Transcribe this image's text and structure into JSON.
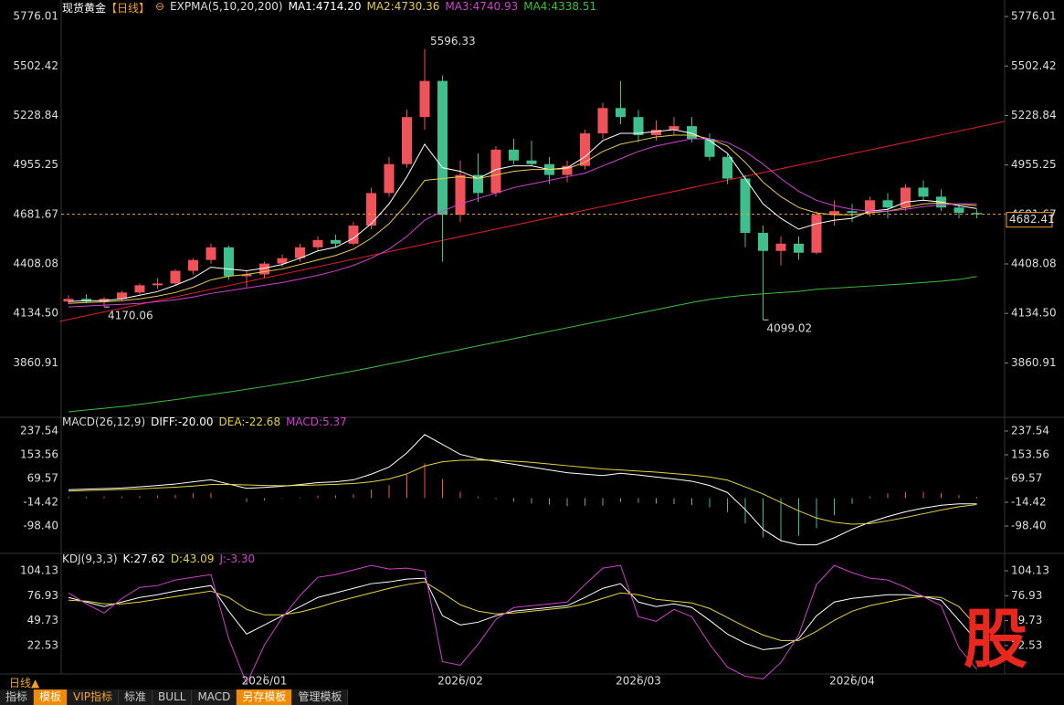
{
  "chart_data": [
    {
      "type": "candlestick",
      "title": "现货黄金",
      "period": "【日线】",
      "indicator": "EXPMA(5,10,20,200)",
      "categories": [
        null,
        null,
        null,
        null,
        null,
        null,
        null,
        null,
        null,
        null,
        null,
        "2026/01",
        null,
        null,
        null,
        null,
        null,
        null,
        null,
        null,
        null,
        null,
        "2026/02",
        null,
        null,
        null,
        null,
        null,
        null,
        null,
        null,
        null,
        "2026/03",
        null,
        null,
        null,
        null,
        null,
        null,
        null,
        null,
        null,
        null,
        null,
        "2026/04",
        null,
        null,
        null,
        null,
        null,
        null,
        null
      ],
      "open": [
        4200,
        4215,
        4200,
        4215,
        4250,
        4290,
        4300,
        4370,
        4430,
        4500,
        4340,
        4350,
        4410,
        4440,
        4500,
        4540,
        4520,
        4620,
        4800,
        4960,
        5220,
        5420,
        4680,
        4900,
        4800,
        5040,
        4980,
        4960,
        4900,
        4950,
        5130,
        5270,
        5220,
        5120,
        5150,
        5170,
        5100,
        5000,
        4880,
        4580,
        4480,
        4520,
        4470,
        4680,
        4700,
        4690,
        4760,
        4720,
        4830,
        4780,
        4720,
        4690
      ],
      "high": [
        4235,
        4240,
        4225,
        4260,
        4300,
        4330,
        4380,
        4440,
        4520,
        4510,
        4370,
        4420,
        4460,
        4520,
        4560,
        4570,
        4640,
        4830,
        5000,
        5260,
        5596.33,
        5450,
        4980,
        5020,
        5060,
        5100,
        5090,
        5000,
        4980,
        5150,
        5300,
        5420,
        5260,
        5200,
        5220,
        5220,
        5130,
        5020,
        4900,
        4620,
        4560,
        4560,
        4700,
        4760,
        4740,
        4780,
        4800,
        4850,
        4870,
        4820,
        4740,
        4710
      ],
      "low": [
        4185,
        4190,
        4170.06,
        4205,
        4240,
        4270,
        4290,
        4350,
        4410,
        4320,
        4280,
        4330,
        4390,
        4420,
        4480,
        4500,
        4510,
        4600,
        4780,
        4940,
        5150,
        4420,
        4640,
        4750,
        4780,
        4960,
        4950,
        4850,
        4860,
        4930,
        5100,
        5180,
        5080,
        5090,
        5120,
        5080,
        4980,
        4850,
        4500,
        4099.02,
        4400,
        4430,
        4460,
        4620,
        4640,
        4670,
        4660,
        4700,
        4760,
        4700,
        4660,
        4660
      ],
      "close": [
        4215,
        4200,
        4215,
        4250,
        4290,
        4300,
        4370,
        4430,
        4500,
        4340,
        4350,
        4410,
        4440,
        4500,
        4540,
        4520,
        4620,
        4800,
        4960,
        5220,
        5420,
        4680,
        4900,
        4800,
        5040,
        4980,
        4960,
        4900,
        4950,
        5130,
        5270,
        5220,
        5120,
        5150,
        5170,
        5100,
        5000,
        4880,
        4580,
        4480,
        4520,
        4470,
        4680,
        4700,
        4690,
        4760,
        4720,
        4830,
        4780,
        4720,
        4690,
        4682.41
      ],
      "up_color": "#f0525a",
      "down_color": "#3fbf8c",
      "series": [
        {
          "name": "MA1:4714.20",
          "color": "#ffffff",
          "values": [
            4200,
            4205,
            4205,
            4215,
            4235,
            4255,
            4290,
            4330,
            4390,
            4380,
            4370,
            4385,
            4405,
            4440,
            4480,
            4500,
            4550,
            4630,
            4740,
            4890,
            5070,
            4940,
            4920,
            4880,
            4930,
            4950,
            4950,
            4930,
            4940,
            5000,
            5090,
            5130,
            5130,
            5140,
            5150,
            5130,
            5090,
            5020,
            4880,
            4740,
            4660,
            4600,
            4630,
            4650,
            4660,
            4700,
            4710,
            4750,
            4760,
            4750,
            4730,
            4714.2
          ]
        },
        {
          "name": "MA2:4730.36",
          "color": "#e6c94a",
          "values": [
            4190,
            4195,
            4198,
            4205,
            4215,
            4230,
            4250,
            4280,
            4320,
            4340,
            4350,
            4365,
            4380,
            4405,
            4430,
            4455,
            4490,
            4550,
            4630,
            4740,
            4870,
            4880,
            4890,
            4880,
            4900,
            4920,
            4930,
            4930,
            4935,
            4970,
            5030,
            5070,
            5090,
            5110,
            5120,
            5120,
            5100,
            5060,
            4970,
            4860,
            4780,
            4720,
            4690,
            4680,
            4680,
            4690,
            4700,
            4720,
            4740,
            4745,
            4738,
            4730.36
          ]
        },
        {
          "name": "MA3:4740.93",
          "color": "#d040d0",
          "values": [
            4170,
            4175,
            4180,
            4185,
            4190,
            4200,
            4210,
            4225,
            4245,
            4260,
            4275,
            4290,
            4305,
            4325,
            4345,
            4370,
            4400,
            4440,
            4490,
            4560,
            4650,
            4700,
            4740,
            4770,
            4800,
            4830,
            4850,
            4870,
            4890,
            4910,
            4950,
            4990,
            5030,
            5060,
            5080,
            5100,
            5100,
            5080,
            5030,
            4960,
            4880,
            4810,
            4760,
            4730,
            4710,
            4700,
            4700,
            4710,
            4725,
            4735,
            4740,
            4740.93
          ]
        },
        {
          "name": "MA4:4338.51",
          "color": "#3cbf3c",
          "values": [
            3590,
            3600,
            3610,
            3620,
            3632,
            3645,
            3658,
            3672,
            3686,
            3700,
            3715,
            3730,
            3746,
            3762,
            3780,
            3798,
            3816,
            3835,
            3855,
            3875,
            3895,
            3915,
            3935,
            3955,
            3975,
            3995,
            4015,
            4035,
            4055,
            4075,
            4095,
            4115,
            4135,
            4155,
            4175,
            4195,
            4212,
            4225,
            4235,
            4243,
            4250,
            4256,
            4268,
            4274,
            4280,
            4286,
            4292,
            4298,
            4305,
            4313,
            4322,
            4338.51
          ]
        }
      ],
      "ylim": [
        3570,
        5842
      ],
      "yticks": [
        5776.01,
        5502.42,
        5228.84,
        4955.25,
        4681.67,
        4408.08,
        {
          "value": 4134.5,
          "label": "4134.50"
        },
        3860.91
      ],
      "grid": false,
      "last_price": 4682.41,
      "last_price_color": "#f0a030"
    },
    {
      "type": "macd",
      "title": "MACD(26,12,9)",
      "series": [
        {
          "name": "DIFF:-20.00",
          "color": "#ffffff",
          "values": [
            30,
            32,
            34,
            36,
            40,
            45,
            50,
            58,
            65,
            50,
            35,
            38,
            42,
            48,
            55,
            58,
            65,
            85,
            110,
            160,
            225,
            190,
            155,
            140,
            130,
            120,
            110,
            100,
            90,
            85,
            80,
            88,
            82,
            75,
            68,
            60,
            45,
            20,
            -40,
            -110,
            -150,
            -165,
            -165,
            -140,
            -110,
            -85,
            -65,
            -48,
            -35,
            -25,
            -20,
            -20
          ]
        },
        {
          "name": "DEA:-22.68",
          "color": "#e6d23c",
          "values": [
            25,
            27,
            29,
            31,
            33,
            36,
            39,
            43,
            48,
            49,
            47,
            45,
            44,
            45,
            47,
            49,
            52,
            58,
            68,
            86,
            114,
            129,
            134,
            135,
            134,
            131,
            127,
            121,
            115,
            109,
            103,
            100,
            96,
            92,
            87,
            82,
            75,
            64,
            40,
            15,
            -15,
            -45,
            -70,
            -85,
            -92,
            -90,
            -80,
            -68,
            -55,
            -42,
            -30,
            -22.68
          ]
        }
      ],
      "histogram": {
        "name": "MACD:5.37",
        "color": "#d040d0",
        "up_color": "#f0525a",
        "down_color": "#3fbf8c",
        "values": [
          6,
          6,
          6,
          6,
          8,
          10,
          12,
          17,
          19,
          1,
          -13,
          -8,
          -2,
          3,
          9,
          10,
          14,
          30,
          47,
          82,
          123,
          68,
          23,
          6,
          -4,
          -12,
          -19,
          -23,
          -28,
          -27,
          -26,
          -13,
          -16,
          -19,
          -21,
          -24,
          -33,
          -49,
          -89,
          -139,
          -150,
          -133,
          -106,
          -61,
          -20,
          6,
          17,
          22,
          22,
          19,
          11,
          5.37
        ]
      },
      "ylim": [
        -185.6,
        276.3
      ],
      "yticks": [
        237.54,
        153.56,
        69.57,
        -14.42,
        {
          "value": -98.4,
          "label": "-98.40"
        }
      ],
      "grid": false
    },
    {
      "type": "kdj",
      "title": "KDJ(9,3,3)",
      "series": [
        {
          "name": "K:27.62",
          "color": "#ffffff",
          "values": [
            75,
            70,
            65,
            70,
            75,
            78,
            82,
            85,
            88,
            60,
            35,
            45,
            55,
            65,
            75,
            80,
            85,
            90,
            92,
            95,
            96,
            55,
            45,
            48,
            55,
            60,
            62,
            64,
            66,
            75,
            85,
            90,
            70,
            65,
            68,
            64,
            50,
            35,
            25,
            18,
            20,
            30,
            55,
            70,
            74,
            76,
            78,
            78,
            76,
            72,
            50,
            27.62
          ]
        },
        {
          "name": "D:43.09",
          "color": "#e6d23c",
          "values": [
            72,
            71,
            68,
            68,
            70,
            73,
            76,
            79,
            82,
            75,
            62,
            56,
            56,
            59,
            64,
            70,
            75,
            80,
            85,
            89,
            92,
            80,
            67,
            60,
            57,
            58,
            60,
            62,
            64,
            68,
            74,
            80,
            78,
            73,
            71,
            69,
            63,
            53,
            43,
            34,
            28,
            28,
            38,
            50,
            60,
            66,
            70,
            74,
            76,
            75,
            65,
            43.09
          ]
        },
        {
          "name": "J:-3.30",
          "color": "#d040d0",
          "values": [
            80,
            68,
            58,
            74,
            86,
            88,
            94,
            97,
            100,
            30,
            -19,
            23,
            53,
            77,
            97,
            100,
            105,
            110,
            106,
            107,
            104,
            5,
            1,
            24,
            51,
            64,
            66,
            68,
            70,
            89,
            107,
            110,
            54,
            49,
            62,
            54,
            24,
            -1,
            -11,
            -14,
            4,
            34,
            89,
            110,
            102,
            96,
            94,
            86,
            76,
            66,
            20,
            -3.3
          ]
        }
      ],
      "ylim": [
        -5.5,
        117.1
      ],
      "yticks": [
        104.13,
        76.93,
        49.73,
        22.53
      ],
      "grid": false
    }
  ],
  "toolbar": {
    "period": "日线▲",
    "tabs": [
      "指标",
      "模板",
      "VIP指标",
      "标准",
      "BULL",
      "MACD",
      "另存模板",
      "管理模板"
    ]
  },
  "logo": "股"
}
